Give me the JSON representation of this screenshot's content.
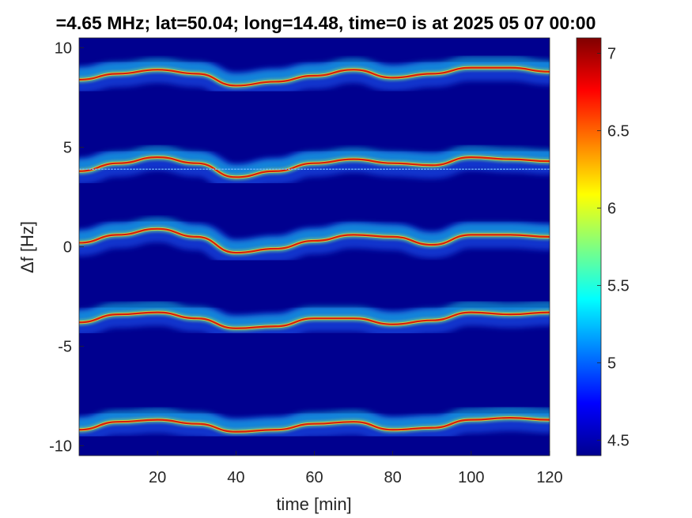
{
  "chart_data": {
    "type": "heatmap",
    "title": "=4.65 MHz;  lat=50.04; long=14.48, time=0 is at 2025 05 07 00:00",
    "xlabel": "time [min]",
    "ylabel": "Δf [Hz]",
    "xlim": [
      0,
      120
    ],
    "ylim": [
      -10.5,
      10.5
    ],
    "xticks": [
      20,
      40,
      60,
      80,
      100,
      120
    ],
    "xtick_labels": [
      "20",
      "40",
      "60",
      "80",
      "100",
      "120"
    ],
    "yticks": [
      10,
      5,
      0,
      -5,
      -10
    ],
    "ytick_labels": [
      "10",
      "5",
      "0",
      "-5",
      "-10"
    ],
    "grid": false,
    "colormap": "jet",
    "background_color": "#00008f",
    "colorbar": {
      "range": [
        4.4,
        7.1
      ],
      "ticks": [
        4.5,
        5,
        5.5,
        6,
        6.5,
        7
      ],
      "tick_labels": [
        "4.5",
        "5",
        "5.5",
        "6",
        "6.5",
        "7"
      ]
    },
    "traces": [
      {
        "name": "",
        "points": [
          [
            0,
            8.4
          ],
          [
            10,
            8.7
          ],
          [
            20,
            8.9
          ],
          [
            30,
            8.7
          ],
          [
            40,
            8.1
          ],
          [
            50,
            8.3
          ],
          [
            60,
            8.6
          ],
          [
            70,
            8.9
          ],
          [
            80,
            8.5
          ],
          [
            90,
            8.7
          ],
          [
            100,
            9.0
          ],
          [
            110,
            9.0
          ],
          [
            120,
            8.8
          ]
        ]
      },
      {
        "name": "",
        "points": [
          [
            0,
            3.8
          ],
          [
            10,
            4.2
          ],
          [
            20,
            4.5
          ],
          [
            30,
            4.2
          ],
          [
            40,
            3.5
          ],
          [
            50,
            3.8
          ],
          [
            60,
            4.2
          ],
          [
            70,
            4.4
          ],
          [
            80,
            4.2
          ],
          [
            90,
            4.1
          ],
          [
            100,
            4.5
          ],
          [
            110,
            4.4
          ],
          [
            120,
            4.3
          ]
        ]
      },
      {
        "name": "",
        "points": [
          [
            0,
            0.2
          ],
          [
            10,
            0.6
          ],
          [
            20,
            0.9
          ],
          [
            30,
            0.5
          ],
          [
            40,
            -0.3
          ],
          [
            50,
            -0.1
          ],
          [
            60,
            0.3
          ],
          [
            70,
            0.6
          ],
          [
            80,
            0.5
          ],
          [
            90,
            0.1
          ],
          [
            100,
            0.6
          ],
          [
            110,
            0.6
          ],
          [
            120,
            0.5
          ]
        ]
      },
      {
        "name": "",
        "points": [
          [
            0,
            -3.8
          ],
          [
            10,
            -3.4
          ],
          [
            20,
            -3.3
          ],
          [
            30,
            -3.6
          ],
          [
            40,
            -4.1
          ],
          [
            50,
            -4.0
          ],
          [
            60,
            -3.6
          ],
          [
            70,
            -3.6
          ],
          [
            80,
            -3.9
          ],
          [
            90,
            -3.7
          ],
          [
            100,
            -3.3
          ],
          [
            110,
            -3.4
          ],
          [
            120,
            -3.3
          ]
        ]
      },
      {
        "name": "",
        "points": [
          [
            0,
            -9.2
          ],
          [
            10,
            -8.8
          ],
          [
            20,
            -8.7
          ],
          [
            30,
            -8.9
          ],
          [
            40,
            -9.3
          ],
          [
            50,
            -9.2
          ],
          [
            60,
            -8.9
          ],
          [
            70,
            -8.8
          ],
          [
            80,
            -9.2
          ],
          [
            90,
            -9.1
          ],
          [
            100,
            -8.7
          ],
          [
            110,
            -8.6
          ],
          [
            120,
            -8.7
          ]
        ]
      }
    ],
    "horizontal_line": {
      "y": 3.9,
      "color": "#6fb7ff"
    }
  }
}
